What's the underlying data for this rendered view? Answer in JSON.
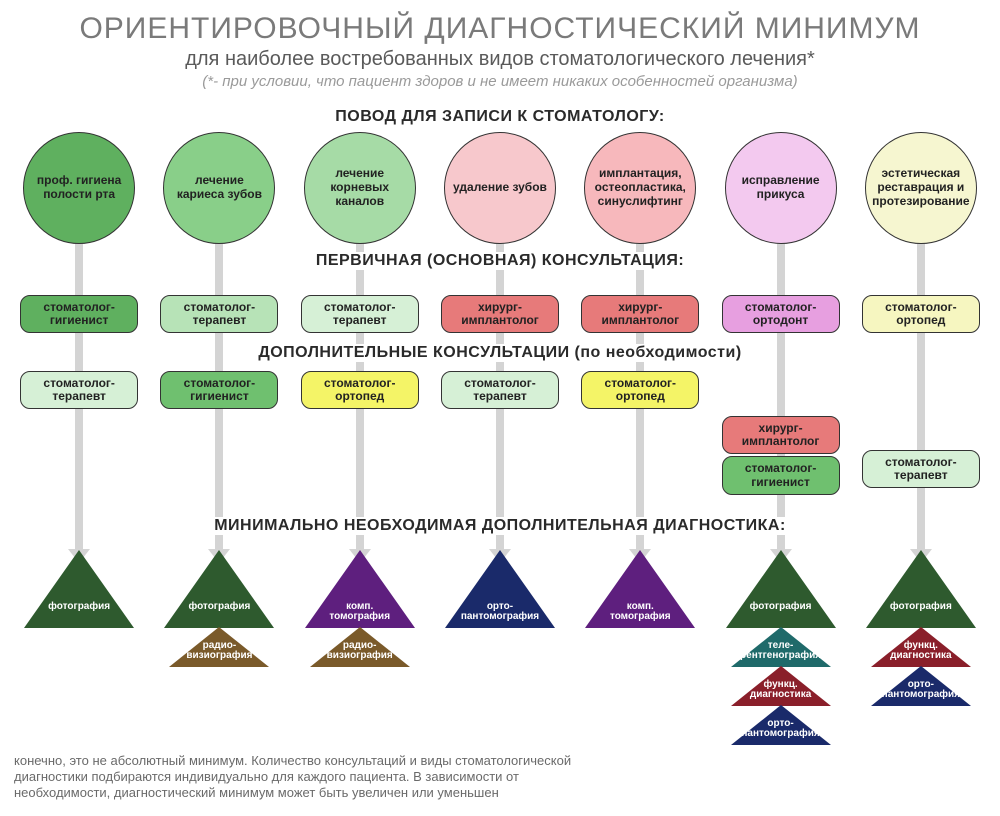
{
  "title": "ОРИЕНТИРОВОЧНЫЙ ДИАГНОСТИЧЕСКИЙ МИНИМУМ",
  "subtitle": "для наиболее востребованных видов стоматологического лечения*",
  "footnote_top": "(*- при условии, что пациент здоров и не имеет никаких особенностей организма)",
  "section_reason": "ПОВОД ДЛЯ ЗАПИСИ К СТОМАТОЛОГУ:",
  "section_primary": "ПЕРВИЧНАЯ (ОСНОВНАЯ) КОНСУЛЬТАЦИЯ:",
  "section_addl": "ДОПОЛНИТЕЛЬНЫЕ КОНСУЛЬТАЦИИ (по необходимости)",
  "section_diag": "МИНИМАЛЬНО НЕОБХОДИМАЯ ДОПОЛНИТЕЛЬНАЯ ДИАГНОСТИКА:",
  "footer_note": "конечно, это не абсолютный минимум. Количество консультаций и виды стоматологической диагностики подбираются индивидуально для каждого пациента. В зависимости от необходимости, диагностический минимум может быть увеличен или уменьшен",
  "colors": {
    "arrow": "#d4d4d4",
    "circle_green_dark": "#5fb05f",
    "circle_green_mid": "#89cf89",
    "circle_green_light": "#a6dba6",
    "circle_pink_light": "#f7c8cc",
    "circle_pink_mid": "#f7b8bc",
    "circle_violet_light": "#f3c9ef",
    "circle_cream": "#f6f6d0",
    "pill_green_dark": "#5fb05f",
    "pill_green_mid": "#b7e3b7",
    "pill_green_light": "#d6f0d6",
    "pill_green_bright": "#6fc06f",
    "pill_red": "#e77a7a",
    "pill_yellow": "#f4f467",
    "pill_magenta": "#e79fe0",
    "pill_cream": "#f6f6c0",
    "tri_green_dark": "#2e5a2e",
    "tri_brown": "#7a5a2a",
    "tri_purple": "#5e1f7e",
    "tri_navy": "#1a2a6a",
    "tri_teal": "#1f6a6a",
    "tri_red": "#8a1f2a"
  },
  "columns": [
    {
      "circle": {
        "label": "проф. гигиена полости рта",
        "fill": "#5fb05f"
      },
      "primary": {
        "label": "стоматолог-гигиенист",
        "fill": "#5fb05f"
      },
      "addl": [
        {
          "label": "стоматолог-терапевт",
          "fill": "#d6f0d6"
        }
      ],
      "tris": [
        {
          "label": "фотография",
          "fill": "#2e5a2e",
          "size": "large"
        }
      ]
    },
    {
      "circle": {
        "label": "лечение кариеса зубов",
        "fill": "#89cf89"
      },
      "primary": {
        "label": "стоматолог-терапевт",
        "fill": "#b7e3b7"
      },
      "addl": [
        {
          "label": "стоматолог-гигиенист",
          "fill": "#6fc06f"
        }
      ],
      "tris": [
        {
          "label": "фотография",
          "fill": "#2e5a2e",
          "size": "large"
        },
        {
          "label": "радио-визиография",
          "fill": "#7a5a2a",
          "size": "small"
        }
      ]
    },
    {
      "circle": {
        "label": "лечение корневых каналов",
        "fill": "#a6dba6"
      },
      "primary": {
        "label": "стоматолог-терапевт",
        "fill": "#d6f0d6"
      },
      "addl": [
        {
          "label": "стоматолог-ортопед",
          "fill": "#f4f467"
        }
      ],
      "tris": [
        {
          "label": "комп. томография",
          "fill": "#5e1f7e",
          "size": "large"
        },
        {
          "label": "радио-визиография",
          "fill": "#7a5a2a",
          "size": "small"
        }
      ]
    },
    {
      "circle": {
        "label": "удаление зубов",
        "fill": "#f7c8cc"
      },
      "primary": {
        "label": "хирург-имплантолог",
        "fill": "#e77a7a"
      },
      "addl": [
        {
          "label": "стоматолог-терапевт",
          "fill": "#d6f0d6"
        }
      ],
      "tris": [
        {
          "label": "орто-пантомография",
          "fill": "#1a2a6a",
          "size": "large"
        }
      ]
    },
    {
      "circle": {
        "label": "имплантация, остеопластика, синуслифтинг",
        "fill": "#f7b8bc"
      },
      "primary": {
        "label": "хирург-имплантолог",
        "fill": "#e77a7a"
      },
      "addl": [
        {
          "label": "стоматолог-ортопед",
          "fill": "#f4f467"
        }
      ],
      "tris": [
        {
          "label": "комп. томография",
          "fill": "#5e1f7e",
          "size": "large"
        }
      ]
    },
    {
      "circle": {
        "label": "исправление прикуса",
        "fill": "#f3c9ef"
      },
      "primary": {
        "label": "стоматолог-ортодонт",
        "fill": "#e79fe0"
      },
      "addl": [],
      "addl_stack": [
        {
          "label": "хирург-имплантолог",
          "fill": "#e77a7a"
        },
        {
          "label": "стоматолог-гигиенист",
          "fill": "#6fc06f"
        }
      ],
      "tris": [
        {
          "label": "фотография",
          "fill": "#2e5a2e",
          "size": "large"
        },
        {
          "label": "теле-рентгенография",
          "fill": "#1f6a6a",
          "size": "small"
        },
        {
          "label": "функц. диагностика",
          "fill": "#8a1f2a",
          "size": "small"
        },
        {
          "label": "орто-пантомография",
          "fill": "#1a2a6a",
          "size": "small"
        }
      ]
    },
    {
      "circle": {
        "label": "эстетическая реставрация и протезирование",
        "fill": "#f6f6d0"
      },
      "primary": {
        "label": "стоматолог-ортопед",
        "fill": "#f6f6c0"
      },
      "addl": [],
      "addl_stack": [
        {
          "label": "стоматолог-терапевт",
          "fill": "#d6f0d6"
        }
      ],
      "addl_stack_offset": true,
      "tris": [
        {
          "label": "фотография",
          "fill": "#2e5a2e",
          "size": "large"
        },
        {
          "label": "функц. диагностика",
          "fill": "#8a1f2a",
          "size": "small"
        },
        {
          "label": "орто-пантомография",
          "fill": "#1a2a6a",
          "size": "small"
        }
      ]
    }
  ]
}
